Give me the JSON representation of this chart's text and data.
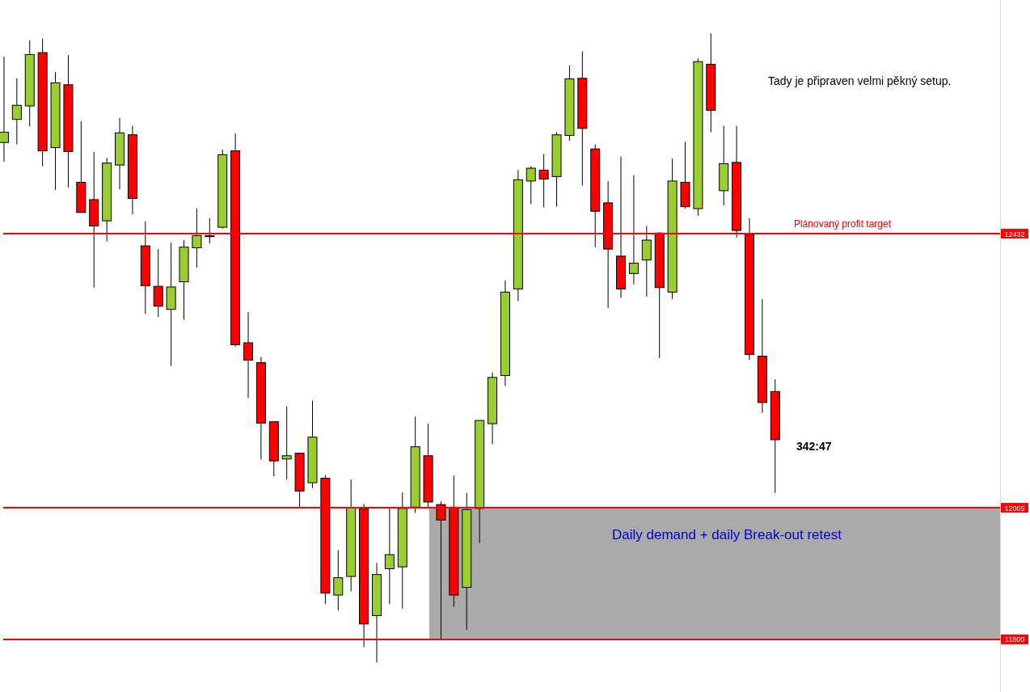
{
  "chart_data": {
    "type": "candlestick",
    "categories": [
      null,
      null,
      null,
      null,
      null,
      null,
      null,
      null,
      null,
      null,
      null,
      null,
      null,
      null,
      null,
      null,
      null,
      null,
      null,
      null,
      null,
      null,
      null,
      null,
      null,
      null,
      null,
      null,
      null,
      null,
      null,
      null,
      null,
      null,
      null,
      null,
      null,
      null,
      null,
      null,
      null,
      null,
      null,
      null,
      null,
      null,
      null,
      null,
      null,
      null,
      null,
      null,
      null,
      null,
      null,
      null,
      null,
      null,
      null,
      null,
      null,
      null,
      null,
      null,
      null,
      null,
      null,
      null,
      null,
      null,
      null,
      null,
      null,
      null,
      null,
      null,
      null,
      null
    ],
    "ohlc": [
      [
        12574,
        12708,
        12544,
        12590
      ],
      [
        12610,
        12674,
        12571,
        12632
      ],
      [
        12631,
        12733,
        12599,
        12711
      ],
      [
        12714,
        12736,
        12537,
        12561
      ],
      [
        12566,
        12684,
        12500,
        12667
      ],
      [
        12664,
        12710,
        12504,
        12560
      ],
      [
        12512,
        12607,
        12465,
        12465
      ],
      [
        12485,
        12559,
        12348,
        12444
      ],
      [
        12452,
        12550,
        12420,
        12542
      ],
      [
        12539,
        12612,
        12501,
        12589
      ],
      [
        12586,
        12600,
        12462,
        12487
      ],
      [
        12413,
        12451,
        12307,
        12351
      ],
      [
        12350,
        12408,
        12302,
        12319
      ],
      [
        12314,
        12418,
        12226,
        12349
      ],
      [
        12357,
        12422,
        12298,
        12411
      ],
      [
        12410,
        12471,
        12379,
        12429
      ],
      [
        12428,
        12456,
        12417,
        12428
      ],
      [
        12442,
        12563,
        12440,
        12555
      ],
      [
        12561,
        12588,
        12256,
        12259
      ],
      [
        12262,
        12310,
        12176,
        12235
      ],
      [
        12231,
        12240,
        12080,
        12137
      ],
      [
        12139,
        12139,
        12054,
        12078
      ],
      [
        12081,
        12163,
        12049,
        12086
      ],
      [
        12090,
        12091,
        12004,
        12031
      ],
      [
        12044,
        12172,
        12036,
        12115
      ],
      [
        12051,
        12056,
        11855,
        11872
      ],
      [
        11869,
        11939,
        11845,
        11896
      ],
      [
        11898,
        12049,
        11875,
        12005
      ],
      [
        12003,
        12011,
        11788,
        11824
      ],
      [
        11837,
        11919,
        11764,
        11901
      ],
      [
        11910,
        12005,
        11855,
        11932
      ],
      [
        11913,
        12029,
        11848,
        12004
      ],
      [
        12006,
        12147,
        11997,
        12100
      ],
      [
        12086,
        12136,
        12006,
        12014
      ],
      [
        12010,
        12015,
        11801,
        11986
      ],
      [
        12006,
        12055,
        11851,
        11869
      ],
      [
        11881,
        12028,
        11815,
        12002
      ],
      [
        12004,
        12141,
        11950,
        12141
      ],
      [
        12136,
        12216,
        12104,
        12208
      ],
      [
        12211,
        12359,
        12195,
        12341
      ],
      [
        12346,
        12531,
        12327,
        12516
      ],
      [
        12514,
        12537,
        12478,
        12534
      ],
      [
        12531,
        12556,
        12473,
        12517
      ],
      [
        12521,
        12590,
        12474,
        12586
      ],
      [
        12585,
        12694,
        12577,
        12673
      ],
      [
        12674,
        12716,
        12507,
        12596
      ],
      [
        12564,
        12571,
        12411,
        12467
      ],
      [
        12480,
        12514,
        12316,
        12408
      ],
      [
        12397,
        12552,
        12332,
        12346
      ],
      [
        12370,
        12523,
        12353,
        12386
      ],
      [
        12391,
        12444,
        12334,
        12422
      ],
      [
        12433,
        12434,
        12238,
        12348
      ],
      [
        12341,
        12549,
        12330,
        12514
      ],
      [
        12512,
        12575,
        12471,
        12474
      ],
      [
        12471,
        12705,
        12460,
        12700
      ],
      [
        12696,
        12744,
        12590,
        12624
      ],
      [
        12499,
        12600,
        12476,
        12541
      ],
      [
        12543,
        12600,
        12426,
        12437
      ],
      [
        12431,
        12456,
        12235,
        12244
      ],
      [
        12241,
        12330,
        12153,
        12169
      ],
      [
        12186,
        12205,
        12028,
        12111
      ],
      null,
      null,
      null,
      null,
      null,
      null,
      null,
      null,
      null,
      null,
      null,
      null,
      null,
      null,
      null,
      null,
      null
    ],
    "colors": [
      "#9acd32",
      "#9acd32",
      "#9acd32",
      "#ff0000",
      "#9acd32",
      "#ff0000",
      "#ff0000",
      "#ff0000",
      "#9acd32",
      "#9acd32",
      "#ff0000",
      "#ff0000",
      "#ff0000",
      "#9acd32",
      "#9acd32",
      "#9acd32",
      "#000000",
      "#9acd32",
      "#ff0000",
      "#ff0000",
      "#ff0000",
      "#ff0000",
      "#9acd32",
      "#ff0000",
      "#9acd32",
      "#ff0000",
      "#9acd32",
      "#9acd32",
      "#ff0000",
      "#9acd32",
      "#9acd32",
      "#9acd32",
      "#9acd32",
      "#ff0000",
      "#ff0000",
      "#ff0000",
      "#9acd32",
      "#9acd32",
      "#9acd32",
      "#9acd32",
      "#9acd32",
      "#9acd32",
      "#ff0000",
      "#9acd32",
      "#9acd32",
      "#ff0000",
      "#ff0000",
      "#ff0000",
      "#ff0000",
      "#9acd32",
      "#9acd32",
      "#ff0000",
      "#9acd32",
      "#ff0000",
      "#9acd32",
      "#ff0000",
      "#9acd32",
      "#ff0000",
      "#ff0000",
      "#ff0000",
      "#ff0000",
      null,
      null,
      null,
      null,
      null,
      null,
      null,
      null,
      null,
      null,
      null,
      null,
      null,
      null,
      null,
      null,
      null
    ],
    "ylim": [
      11718,
      12796
    ],
    "yticks": [
      11800,
      12005,
      12432
    ],
    "tick_labels": "y",
    "ref_lines": [
      {
        "axis": "y",
        "value": 12432,
        "color": "#ff0000"
      },
      {
        "axis": "y",
        "value": 12005,
        "color": "#ff0000"
      },
      {
        "axis": "y",
        "value": 11800,
        "color": "#ff0000"
      }
    ],
    "bands": [
      {
        "axis": "y",
        "from": 11800,
        "to": 12005,
        "label": "Daily demand + daily Break-out retest",
        "color": "#aaaaaa"
      }
    ],
    "annotations": [
      "Tady je připraven velmi pěkný setup.",
      {
        "text": "Plánovaný profit target",
        "y": 12432
      },
      "342:47"
    ]
  }
}
